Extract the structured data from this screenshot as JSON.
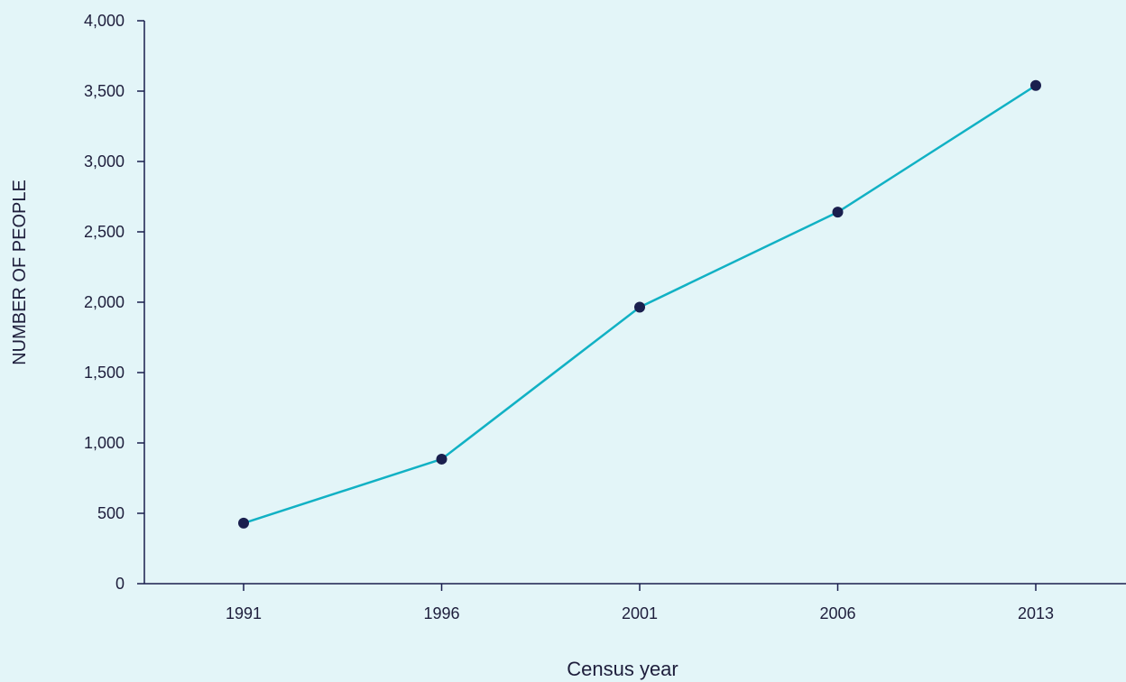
{
  "colors": {
    "background": "#e3f5f8",
    "axis": "#1a1f4e",
    "line": "#11b1c4",
    "marker": "#1a1f4e",
    "text": "#1e1e3c"
  },
  "chart_data": {
    "type": "line",
    "categories": [
      "1991",
      "1996",
      "2001",
      "2006",
      "2013"
    ],
    "series": [
      {
        "values": [
          430,
          885,
          1965,
          2640,
          3540
        ]
      }
    ],
    "xlabel": "Census year",
    "ylabel": "NUMBER OF PEOPLE",
    "ylim": [
      0,
      4000
    ],
    "yticks": [
      "0",
      "500",
      "1,000",
      "1,500",
      "2,000",
      "2,500",
      "3,000",
      "3,500",
      "4,000"
    ],
    "grid": false,
    "legend": "none"
  }
}
